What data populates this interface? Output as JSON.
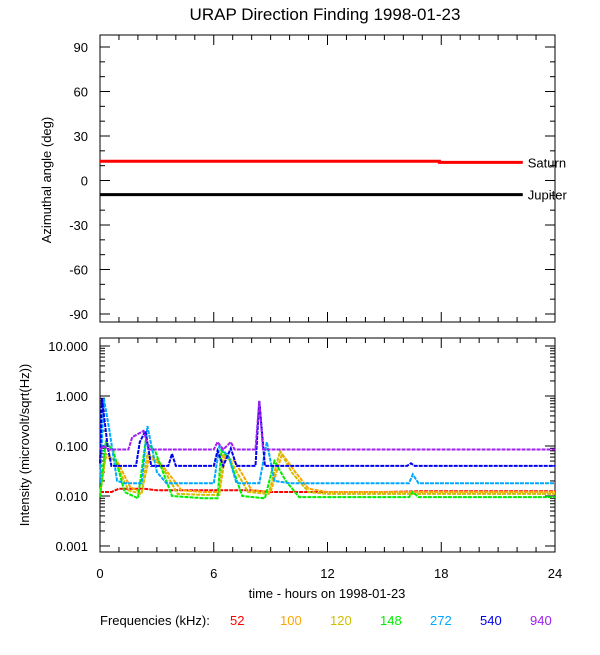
{
  "title": "URAP Direction Finding  1998-01-23",
  "legend": {
    "label": "Frequencies (kHz):",
    "items": [
      {
        "name": "52",
        "color": "#ff0000"
      },
      {
        "name": "100",
        "color": "#ffa500"
      },
      {
        "name": "120",
        "color": "#cdc000"
      },
      {
        "name": "148",
        "color": "#00ee00"
      },
      {
        "name": "272",
        "color": "#00a8ff"
      },
      {
        "name": "540",
        "color": "#0000ee"
      },
      {
        "name": "940",
        "color": "#a020f0"
      }
    ]
  },
  "chart_data": [
    {
      "type": "line",
      "ylabel": "Azimuthal angle (deg)",
      "xlim": [
        0,
        24
      ],
      "ylim": [
        -90,
        90
      ],
      "yticks": [
        "90",
        "60",
        "30",
        "0",
        "-30",
        "-60",
        "-90"
      ],
      "ytick_values": [
        90,
        60,
        30,
        0,
        -30,
        -60,
        -90
      ],
      "series": [
        {
          "name": "Saturn",
          "color": "#ff0000",
          "points": [
            [
              0,
              13
            ],
            [
              17.9,
              13
            ],
            [
              17.9,
              12.2
            ],
            [
              22.3,
              12.2
            ]
          ]
        },
        {
          "name": "Jupiter",
          "color": "#000000",
          "points": [
            [
              0,
              -9.5
            ],
            [
              22.3,
              -9.5
            ]
          ]
        }
      ]
    },
    {
      "type": "line",
      "ylabel": "Intensity (microvolt/sqrt(Hz))",
      "xlabel": "time - hours on 1998-01-23",
      "xlim": [
        0,
        24
      ],
      "ylim": [
        0.001,
        10
      ],
      "yscale": "log",
      "yticks": [
        "10.000",
        "1.000",
        "0.100",
        "0.010",
        "0.001"
      ],
      "ytick_values": [
        10,
        1,
        0.1,
        0.01,
        0.001
      ],
      "xticks": [
        "0",
        "6",
        "12",
        "18",
        "24"
      ],
      "xtick_values": [
        0,
        6,
        12,
        18,
        24
      ],
      "series": [
        {
          "name": "52",
          "points": [
            [
              0,
              0.012
            ],
            [
              0.6,
              0.012
            ],
            [
              1,
              0.014
            ],
            [
              2.3,
              0.014
            ],
            [
              3,
              0.013
            ],
            [
              4.5,
              0.013
            ],
            [
              5.5,
              0.013
            ],
            [
              7,
              0.013
            ],
            [
              8,
              0.013
            ],
            [
              9,
              0.012
            ],
            [
              12,
              0.012
            ],
            [
              15,
              0.012
            ],
            [
              17,
              0.0125
            ],
            [
              20,
              0.0125
            ],
            [
              24,
              0.0125
            ]
          ]
        },
        {
          "name": "100",
          "points": [
            [
              0,
              0.011
            ],
            [
              0.3,
              0.06
            ],
            [
              0.9,
              0.05
            ],
            [
              1.6,
              0.015
            ],
            [
              2.2,
              0.012
            ],
            [
              2.6,
              0.06
            ],
            [
              3.3,
              0.04
            ],
            [
              4.3,
              0.013
            ],
            [
              5.5,
              0.012
            ],
            [
              6.3,
              0.012
            ],
            [
              6.6,
              0.06
            ],
            [
              7.1,
              0.05
            ],
            [
              8,
              0.013
            ],
            [
              9,
              0.012
            ],
            [
              9.6,
              0.07
            ],
            [
              10.3,
              0.03
            ],
            [
              11,
              0.014
            ],
            [
              12,
              0.012
            ],
            [
              24,
              0.012
            ]
          ]
        },
        {
          "name": "120",
          "points": [
            [
              0,
              0.0105
            ],
            [
              0.3,
              0.07
            ],
            [
              0.8,
              0.05
            ],
            [
              1.5,
              0.013
            ],
            [
              2.2,
              0.011
            ],
            [
              2.5,
              0.07
            ],
            [
              3.1,
              0.05
            ],
            [
              4.1,
              0.011
            ],
            [
              5.5,
              0.0105
            ],
            [
              6.3,
              0.0105
            ],
            [
              6.5,
              0.07
            ],
            [
              6.9,
              0.05
            ],
            [
              7.8,
              0.012
            ],
            [
              8.9,
              0.011
            ],
            [
              9.5,
              0.08
            ],
            [
              10.1,
              0.03
            ],
            [
              11,
              0.012
            ],
            [
              12,
              0.011
            ],
            [
              24,
              0.011
            ]
          ]
        },
        {
          "name": "148",
          "points": [
            [
              0,
              0.0095
            ],
            [
              0.3,
              0.12
            ],
            [
              0.7,
              0.08
            ],
            [
              1.3,
              0.012
            ],
            [
              2,
              0.009
            ],
            [
              2.4,
              0.12
            ],
            [
              2.9,
              0.08
            ],
            [
              3.8,
              0.01
            ],
            [
              5.5,
              0.009
            ],
            [
              6.2,
              0.009
            ],
            [
              6.4,
              0.08
            ],
            [
              6.8,
              0.06
            ],
            [
              7.5,
              0.01
            ],
            [
              8.7,
              0.009
            ],
            [
              9.2,
              0.05
            ],
            [
              9.8,
              0.02
            ],
            [
              10.5,
              0.0095
            ],
            [
              16.3,
              0.0095
            ],
            [
              16.5,
              0.012
            ],
            [
              16.8,
              0.0095
            ],
            [
              24,
              0.0095
            ]
          ]
        },
        {
          "name": "272",
          "points": [
            [
              0,
              0.018
            ],
            [
              0.2,
              0.9
            ],
            [
              0.5,
              0.2
            ],
            [
              0.9,
              0.02
            ],
            [
              1.3,
              0.018
            ],
            [
              2.2,
              0.018
            ],
            [
              2.5,
              0.25
            ],
            [
              3,
              0.03
            ],
            [
              3.5,
              0.018
            ],
            [
              6,
              0.018
            ],
            [
              6.3,
              0.1
            ],
            [
              6.8,
              0.06
            ],
            [
              7.2,
              0.018
            ],
            [
              8.4,
              0.018
            ],
            [
              8.8,
              0.12
            ],
            [
              9.2,
              0.02
            ],
            [
              10,
              0.018
            ],
            [
              16.3,
              0.018
            ],
            [
              16.5,
              0.027
            ],
            [
              16.8,
              0.018
            ],
            [
              24,
              0.018
            ]
          ]
        },
        {
          "name": "540",
          "points": [
            [
              0,
              0.045
            ],
            [
              0.1,
              0.9
            ],
            [
              0.4,
              0.1
            ],
            [
              0.6,
              0.04
            ],
            [
              1.9,
              0.04
            ],
            [
              2.1,
              0.12
            ],
            [
              2.4,
              0.2
            ],
            [
              2.7,
              0.04
            ],
            [
              3.6,
              0.04
            ],
            [
              3.8,
              0.07
            ],
            [
              4,
              0.04
            ],
            [
              6,
              0.04
            ],
            [
              6.2,
              0.08
            ],
            [
              6.5,
              0.04
            ],
            [
              6.9,
              0.09
            ],
            [
              7.2,
              0.04
            ],
            [
              8.2,
              0.04
            ],
            [
              8.4,
              0.8
            ],
            [
              8.7,
              0.04
            ],
            [
              16.2,
              0.04
            ],
            [
              16.4,
              0.045
            ],
            [
              16.6,
              0.04
            ],
            [
              24,
              0.04
            ]
          ]
        },
        {
          "name": "940",
          "points": [
            [
              0,
              0.085
            ],
            [
              0.2,
              0.1
            ],
            [
              0.4,
              0.085
            ],
            [
              1.5,
              0.085
            ],
            [
              1.7,
              0.15
            ],
            [
              2.3,
              0.2
            ],
            [
              2.6,
              0.085
            ],
            [
              6,
              0.085
            ],
            [
              6.2,
              0.12
            ],
            [
              6.5,
              0.085
            ],
            [
              6.9,
              0.12
            ],
            [
              7.1,
              0.085
            ],
            [
              8.2,
              0.085
            ],
            [
              8.4,
              0.8
            ],
            [
              8.6,
              0.085
            ],
            [
              24,
              0.085
            ]
          ]
        }
      ]
    }
  ],
  "labels": {
    "saturn": "Saturn",
    "jupiter": "Jupiter"
  }
}
